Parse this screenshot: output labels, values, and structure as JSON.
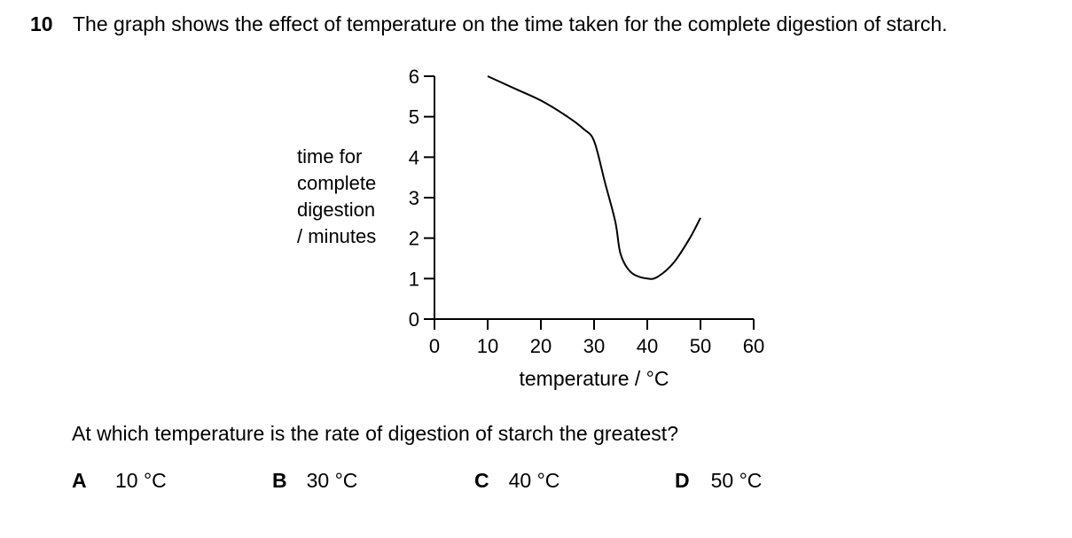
{
  "question": {
    "number": "10",
    "text": "The graph shows the effect of temperature on the time taken for the complete digestion of starch.",
    "prompt": "At which temperature is the rate of digestion of starch the greatest?",
    "options": [
      {
        "letter": "A",
        "value": "10 °C"
      },
      {
        "letter": "B",
        "value": "30 °C"
      },
      {
        "letter": "C",
        "value": "40 °C"
      },
      {
        "letter": "D",
        "value": "50 °C"
      }
    ]
  },
  "chart_data": {
    "type": "line",
    "ylabel": [
      "time for",
      "complete",
      "digestion",
      "/ minutes"
    ],
    "xlabel": "temperature / °C",
    "xlim": [
      0,
      60
    ],
    "ylim": [
      0,
      6
    ],
    "xticks": [
      "0",
      "10",
      "20",
      "30",
      "40",
      "50",
      "60"
    ],
    "yticks": [
      "0",
      "1",
      "2",
      "3",
      "4",
      "5",
      "6"
    ],
    "grid": false,
    "series": [
      {
        "x": [
          10,
          15,
          20,
          25,
          28,
          30,
          32,
          34,
          35,
          37,
          40,
          42,
          45,
          48,
          50
        ],
        "y": [
          6.0,
          5.7,
          5.4,
          5.0,
          4.7,
          4.4,
          3.4,
          2.4,
          1.6,
          1.15,
          1.0,
          1.05,
          1.4,
          2.0,
          2.5
        ]
      }
    ]
  }
}
